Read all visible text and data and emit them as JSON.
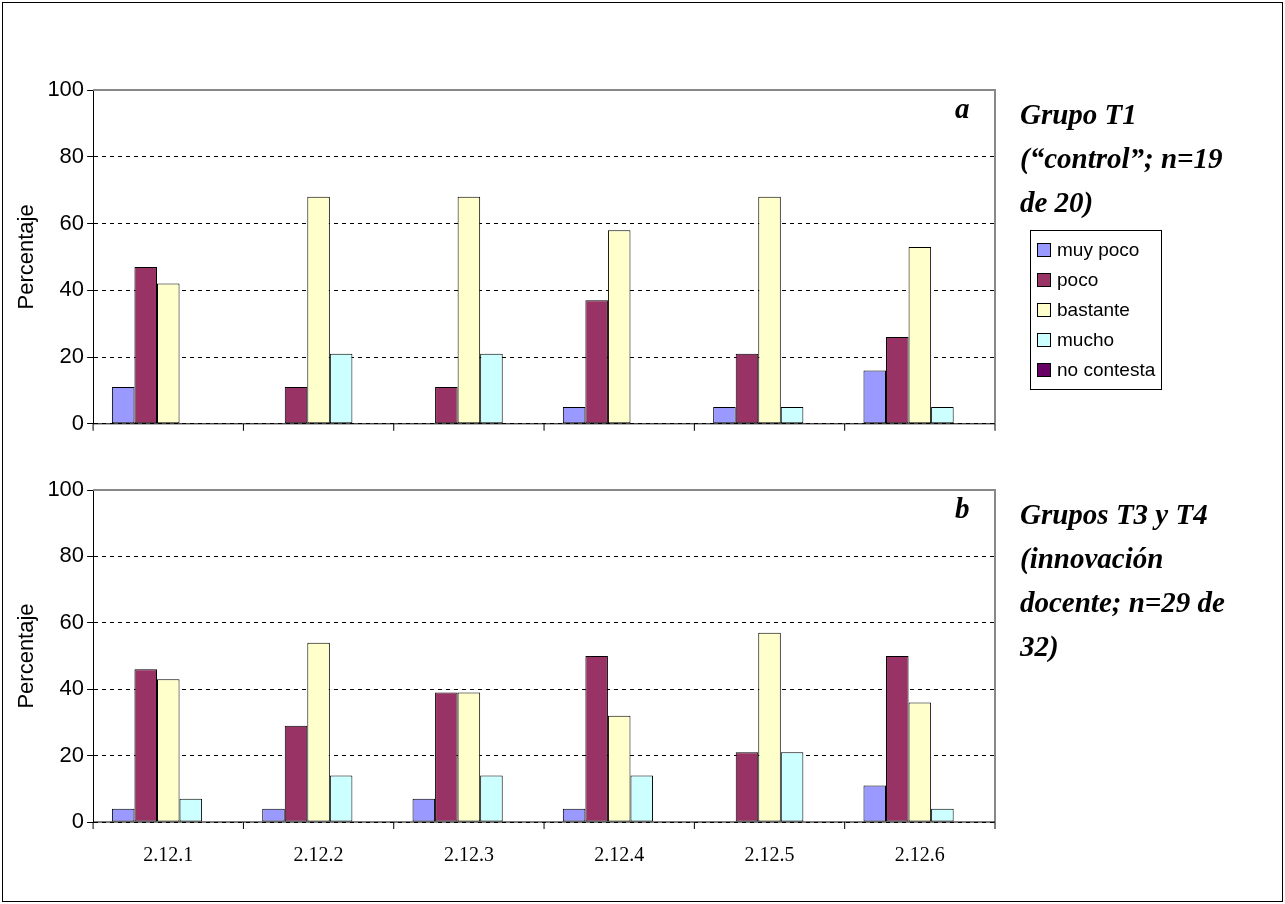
{
  "chart_data": [
    {
      "type": "bar",
      "ylabel": "Percentaje",
      "categories": [
        "2.12.1",
        "2.12.2",
        "2.12.3",
        "2.12.4",
        "2.12.5",
        "2.12.6"
      ],
      "tick_labels": "y",
      "ylim": [
        0,
        100
      ],
      "yticks": [
        0,
        20,
        40,
        60,
        80,
        100
      ],
      "grid": "y",
      "legend": "right",
      "annotations": [
        "a",
        "Grupo T1 (“control”; n=19 de 20)"
      ],
      "series": [
        {
          "name": "muy poco",
          "color": "#9999ff",
          "values": [
            11,
            0,
            0,
            5,
            5,
            16
          ]
        },
        {
          "name": "poco",
          "color": "#993366",
          "values": [
            47,
            11,
            11,
            37,
            21,
            26
          ]
        },
        {
          "name": "bastante",
          "color": "#ffffcc",
          "values": [
            42,
            68,
            68,
            58,
            68,
            53
          ]
        },
        {
          "name": "mucho",
          "color": "#ccffff",
          "values": [
            0,
            21,
            21,
            0,
            5,
            5
          ]
        },
        {
          "name": "no contesta",
          "color": "#660066",
          "values": [
            0,
            0,
            0,
            0,
            0,
            0
          ]
        }
      ]
    },
    {
      "type": "bar",
      "ylabel": "Percentaje",
      "categories": [
        "2.12.1",
        "2.12.2",
        "2.12.3",
        "2.12.4",
        "2.12.5",
        "2.12.6"
      ],
      "ylim": [
        0,
        100
      ],
      "yticks": [
        0,
        20,
        40,
        60,
        80,
        100
      ],
      "grid": "y",
      "annotations": [
        "b",
        "Grupos T3 y T4 (innovación docente; n=29 de 32)"
      ],
      "series": [
        {
          "color": "#9999ff",
          "values": [
            4,
            4,
            7,
            4,
            0,
            11
          ]
        },
        {
          "color": "#993366",
          "values": [
            46,
            29,
            39,
            50,
            21,
            50
          ]
        },
        {
          "color": "#ffffcc",
          "values": [
            43,
            54,
            39,
            32,
            57,
            36
          ]
        },
        {
          "color": "#ccffff",
          "values": [
            7,
            14,
            14,
            14,
            21,
            4
          ]
        },
        {
          "color": "#660066",
          "values": [
            0,
            0,
            0,
            0,
            0,
            0
          ]
        }
      ]
    }
  ]
}
